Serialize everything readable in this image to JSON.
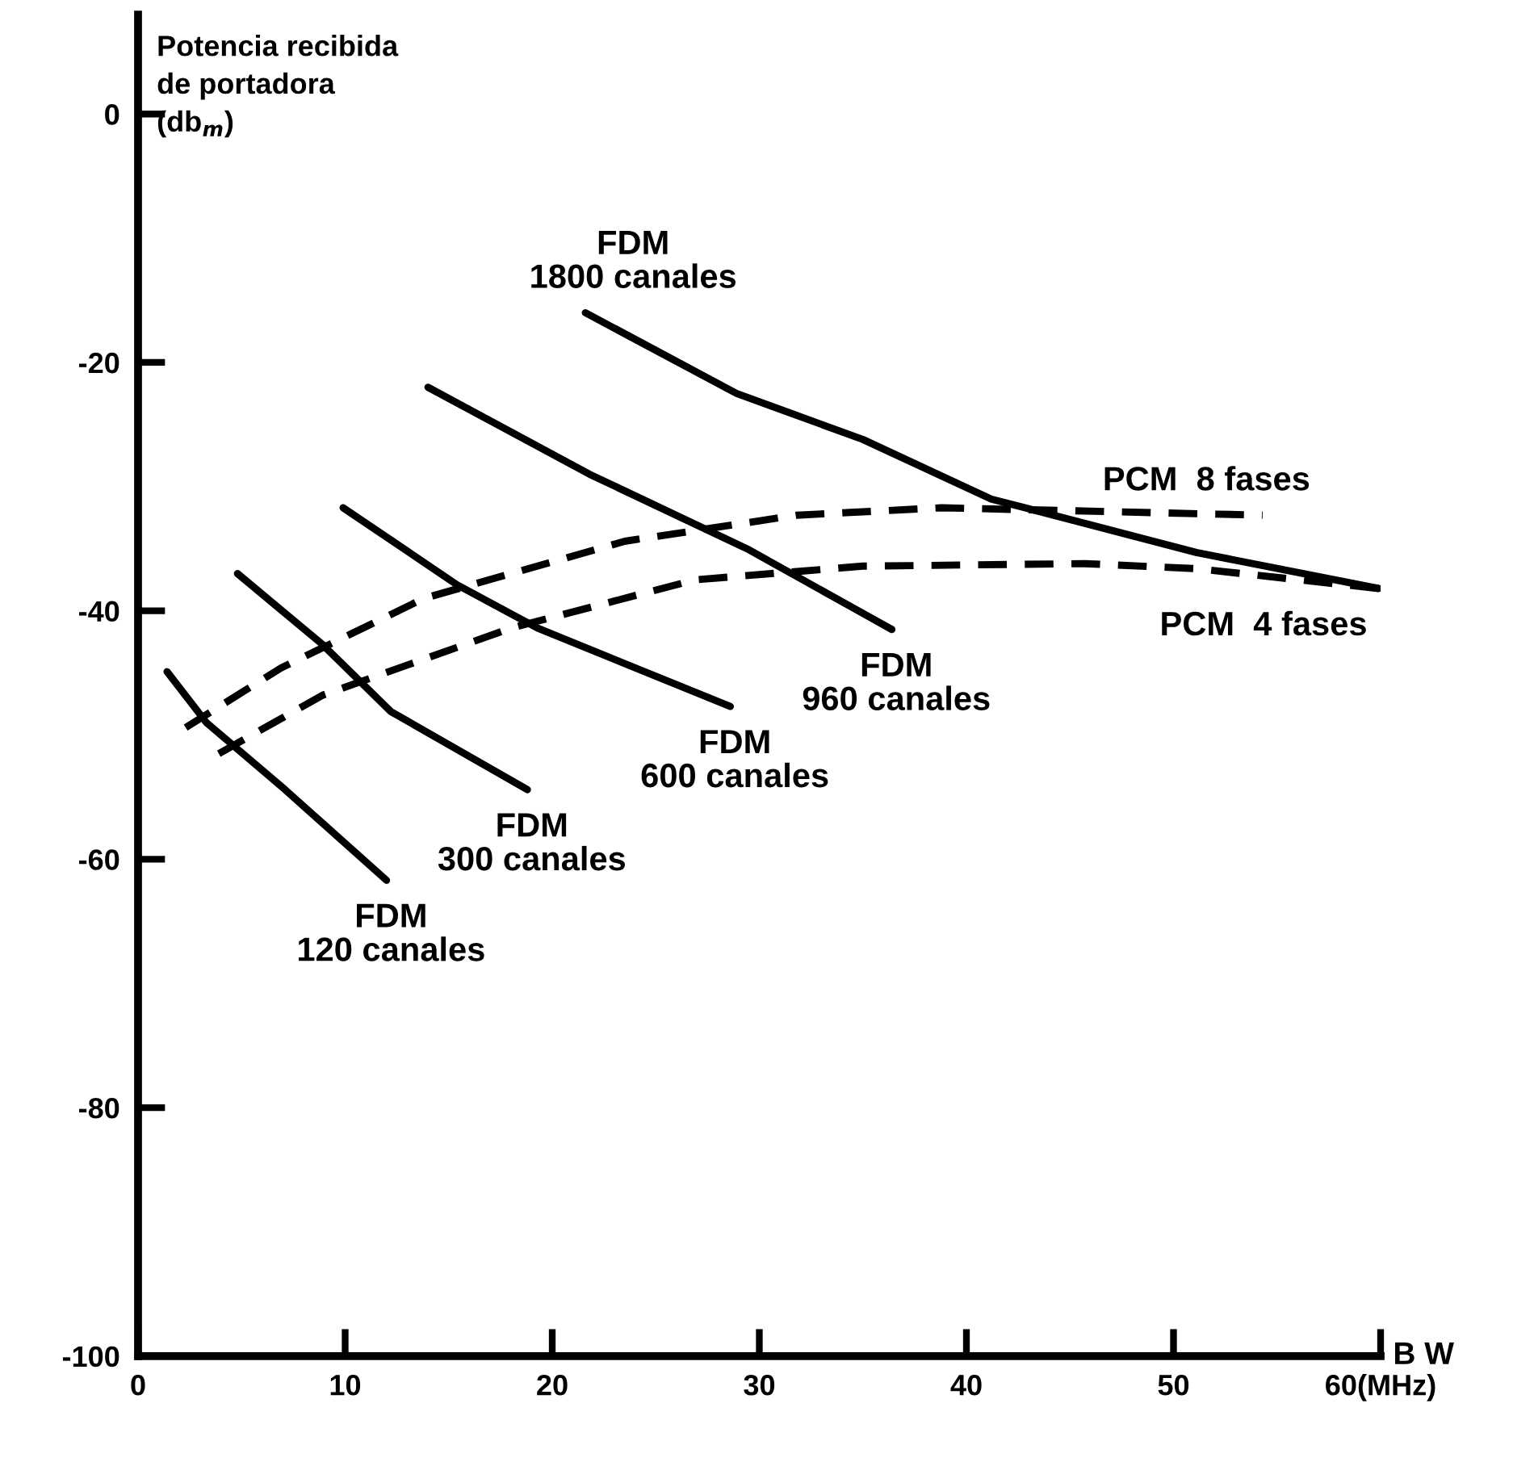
{
  "chart_data": {
    "type": "line",
    "ylabel": "Potencia recibida\nde portadora\n(db$_{m}$)",
    "xlabel": "B W",
    "xlim": [
      0,
      60
    ],
    "ylim": [
      -100,
      8
    ],
    "xticks": [
      0,
      10,
      20,
      30,
      40,
      50,
      {
        "value": 60,
        "label": "60(MHz)"
      }
    ],
    "yticks": [
      0,
      -20,
      -40,
      -60,
      -80,
      -100
    ],
    "grid": false,
    "legend": false,
    "marker": "none",
    "series": [
      {
        "name": "FDM\n120 canales",
        "color": "#000000",
        "line_style": "solid",
        "x": [
          1.4,
          3.3,
          7.1,
          12.0
        ],
        "values": [
          -44.9,
          -49,
          -54.4,
          -61.7
        ]
      },
      {
        "name": "FDM\n300 canales",
        "color": "#000000",
        "line_style": "solid",
        "x": [
          4.8,
          8.9,
          12.2,
          18.8
        ],
        "values": [
          -37.0,
          -42.7,
          -48.1,
          -54.4
        ]
      },
      {
        "name": "FDM\n600 canales",
        "color": "#000000",
        "line_style": "solid",
        "x": [
          9.9,
          15.4,
          19.3,
          28.6
        ],
        "values": [
          -31.7,
          -37.9,
          -41.4,
          -47.7
        ]
      },
      {
        "name": "FDM\n960 canales",
        "color": "#000000",
        "line_style": "solid",
        "x": [
          14.0,
          21.8,
          29.4,
          36.4
        ],
        "values": [
          -22,
          -29,
          -35,
          -41.5
        ]
      },
      {
        "name": "FDM\n1800 canales",
        "color": "#000000",
        "line_style": "solid",
        "x": [
          21.6,
          28.9,
          35.0,
          41.2,
          51.1,
          59.9
        ],
        "values": [
          -16,
          -22.5,
          -26.2,
          -31.0,
          -35.3,
          -38.2
        ]
      },
      {
        "name": "PCM  8 fases",
        "color": "#000000",
        "line_style": "dashed",
        "x": [
          2.3,
          6.9,
          13.8,
          23.5,
          31.8,
          38.8,
          54.3
        ],
        "values": [
          -49.4,
          -44.6,
          -39.0,
          -34.4,
          -32.3,
          -31.7,
          -32.3
        ]
      },
      {
        "name": "PCM  4 fases",
        "color": "#000000",
        "line_style": "dashed",
        "x": [
          3.9,
          8.9,
          18.0,
          26.9,
          35.0,
          45.7,
          51.1,
          59.9
        ],
        "values": [
          -51.5,
          -46.8,
          -41.4,
          -37.5,
          -36.4,
          -36.2,
          -36.6,
          -38.2
        ]
      }
    ]
  }
}
